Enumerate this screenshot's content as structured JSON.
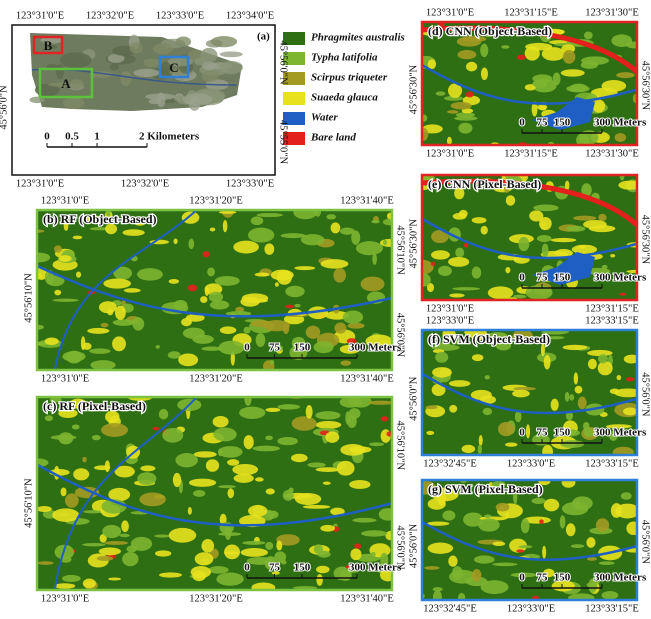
{
  "legend": [
    {
      "label": "Phragmites australis",
      "color": "#2f6f14"
    },
    {
      "label": "Typha latifolia",
      "color": "#7db530"
    },
    {
      "label": "Scirpus triqueter",
      "color": "#a39a22"
    },
    {
      "label": "Suaeda glauca",
      "color": "#e8e21e"
    },
    {
      "label": "Water",
      "color": "#1f5fc4"
    },
    {
      "label": "Bare land",
      "color": "#e3201b"
    }
  ],
  "panels": [
    {
      "title": "(a)",
      "frame_color": "#111111",
      "top": [
        "123°31'0\"E",
        "123°32'0\"E",
        "123°33'0\"E",
        "123°34'0\"E"
      ],
      "bottom": [
        "123°31'0\"E",
        "123°32'0\"E",
        "123°33'0\"E"
      ],
      "left": [
        "45°56'0\"N"
      ],
      "right": [
        "45°56'0\"N",
        "45°55'0\"N"
      ],
      "scale": [
        "0",
        "0.5",
        "1",
        "2 Kilometers"
      ],
      "boxes": [
        {
          "label": "B",
          "color": "#e02424"
        },
        {
          "label": "A",
          "color": "#5cc23a"
        },
        {
          "label": "C",
          "color": "#2f7fd8"
        }
      ]
    },
    {
      "title": "(b) RF (Object-Based)",
      "frame_color": "#7dc243",
      "top": [
        "123°31'0\"E",
        "123°31'20\"E",
        "123°31'40\"E"
      ],
      "bottom": [
        "123°31'0\"E",
        "123°31'20\"E",
        "123°31'40\"E"
      ],
      "left": [
        "45°56'10\"N"
      ],
      "right": [
        "45°56'10\"N",
        "45°56'0\"N"
      ],
      "scale": [
        "0",
        "75",
        "150",
        "300 Meters"
      ]
    },
    {
      "title": "(c) RF (Pixel-Based)",
      "frame_color": "#7dc243",
      "top": [],
      "bottom": [
        "123°31'0\"E",
        "123°31'20\"E",
        "123°31'40\"E"
      ],
      "left": [
        "45°56'10\"N"
      ],
      "right": [
        "45°56'10\"N",
        "45°56'0\"N"
      ],
      "scale": [
        "0",
        "75",
        "150",
        "300 Meters"
      ]
    },
    {
      "title": "(d) CNN (Object-Based)",
      "frame_color": "#e02424",
      "top": [
        "123°31'0\"E",
        "123°31'15\"E",
        "123°31'30\"E"
      ],
      "bottom": [
        "123°31'0\"E",
        "123°31'15\"E",
        "123°31'30\"E"
      ],
      "left": [
        "45°56'30\"N"
      ],
      "right": [
        "45°56'30\"N"
      ],
      "scale": [
        "0",
        "75",
        "150",
        "300 Meters"
      ]
    },
    {
      "title": "(e) CNN (Pixel-Based)",
      "frame_color": "#e02424",
      "top": [],
      "bottom": [
        "123°31'0\"E",
        "123°31'15\"E"
      ],
      "left": [
        "45°56'30\"N"
      ],
      "right": [
        "45°56'30\"N"
      ],
      "scale": [
        "0",
        "75",
        "150",
        "300 Meters"
      ]
    },
    {
      "title": "(f) SVM (Object-Based)",
      "frame_color": "#2f7fd8",
      "top": [
        "123°33'0\"E",
        "123°33'15\"E"
      ],
      "bottom": [
        "123°32'45\"E",
        "123°33'0\"E",
        "123°33'15\"E"
      ],
      "left": [
        "45°56'0\"N"
      ],
      "right": [
        "45°56'0\"N"
      ],
      "scale": [
        "0",
        "75",
        "150",
        "300 Meters"
      ]
    },
    {
      "title": "(g) SVM (Pixel-Based)",
      "frame_color": "#2f7fd8",
      "top": [],
      "bottom": [
        "123°32'45\"E",
        "123°33'0\"E",
        "123°33'15\"E"
      ],
      "left": [
        "45°56'0\"N"
      ],
      "right": [
        "45°56'0\"N"
      ],
      "scale": [
        "0",
        "75",
        "150",
        "300 Meters"
      ]
    }
  ]
}
